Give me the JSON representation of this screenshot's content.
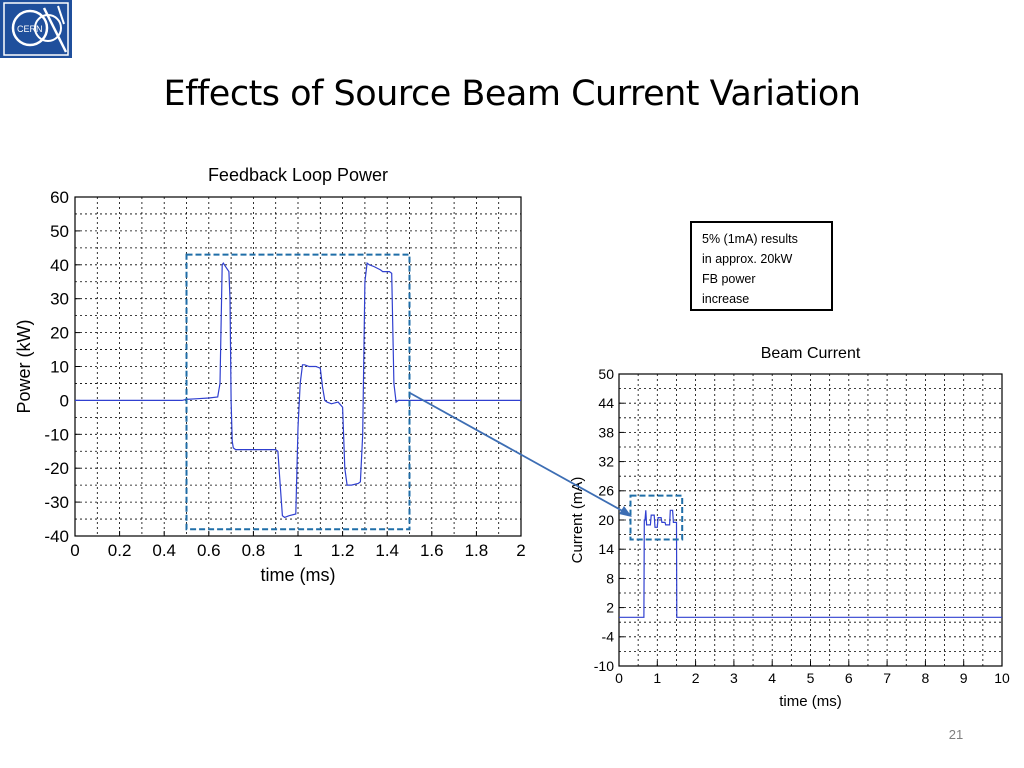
{
  "slide": {
    "title": "Effects of Source Beam Current Variation",
    "page_number": "21",
    "logo_text": "CERN"
  },
  "annotation": {
    "lines": [
      "5% (1mA) results",
      "in  approx. 20kW",
      "FB power",
      "increase"
    ]
  },
  "colors": {
    "trace": "#3040d0",
    "highlight_box": "#1f6ea8",
    "arrow": "#3d6eb4",
    "grid": "#000000",
    "logo_bg": "#1f4f9c"
  },
  "chart_data": [
    {
      "type": "line",
      "title": "Feedback Loop Power",
      "xlabel": "time (ms)",
      "ylabel": "Power (kW)",
      "xlim": [
        0,
        2
      ],
      "ylim": [
        -40,
        60
      ],
      "xticks": [
        0,
        0.2,
        0.4,
        0.6,
        0.8,
        1,
        1.2,
        1.4,
        1.6,
        1.8,
        2
      ],
      "xtick_labels": [
        "0",
        "0.2",
        "0.4",
        "0.6",
        "0.8",
        "1",
        "1.2",
        "1.4",
        "1.6",
        "1.8",
        "2"
      ],
      "yticks": [
        60,
        50,
        40,
        30,
        20,
        10,
        0,
        -10,
        -20,
        -30,
        -40
      ],
      "ytick_labels": [
        "60",
        "50",
        "40",
        "30",
        "20",
        "10",
        "0",
        "-10",
        "-20",
        "-30",
        "-40"
      ],
      "grid": true,
      "highlight_region": {
        "x": [
          0.5,
          1.5
        ],
        "y": [
          -38,
          43
        ]
      },
      "series": [
        {
          "x": [
            0,
            0.48,
            0.5,
            0.55,
            0.6,
            0.64,
            0.65,
            0.66,
            0.665,
            0.67,
            0.68,
            0.69,
            0.695,
            0.7,
            0.705,
            0.71,
            0.72,
            0.75,
            0.8,
            0.9,
            0.91,
            0.92,
            0.93,
            0.94,
            0.96,
            0.99,
            1.0,
            1.01,
            1.02,
            1.03,
            1.05,
            1.08,
            1.1,
            1.11,
            1.12,
            1.13,
            1.15,
            1.18,
            1.2,
            1.21,
            1.22,
            1.24,
            1.27,
            1.28,
            1.29,
            1.3,
            1.31,
            1.32,
            1.34,
            1.37,
            1.38,
            1.41,
            1.42,
            1.43,
            1.44,
            1.45,
            1.46,
            1.5,
            2
          ],
          "y": [
            0,
            0,
            0.3,
            0.5,
            0.7,
            1,
            5,
            40,
            40.5,
            40,
            39,
            38,
            30,
            0,
            -12,
            -14,
            -14.5,
            -14.5,
            -14.5,
            -14.5,
            -15,
            -25,
            -34,
            -34.5,
            -34,
            -33.5,
            -8,
            5,
            10.5,
            10.5,
            10,
            10,
            9.5,
            4,
            0,
            -0.5,
            -1,
            -0.5,
            -2,
            -20,
            -25,
            -25,
            -24.5,
            -24,
            -10,
            35,
            40.5,
            40,
            39.5,
            38.5,
            38,
            38,
            37.5,
            5,
            -0.5,
            0,
            0,
            0,
            0
          ]
        }
      ]
    },
    {
      "type": "line",
      "title": "Beam Current",
      "xlabel": "time (ms)",
      "ylabel": "Current (mA)",
      "xlim": [
        0,
        10
      ],
      "ylim": [
        -10,
        50
      ],
      "xticks": [
        0,
        1,
        2,
        3,
        4,
        5,
        6,
        7,
        8,
        9,
        10
      ],
      "xtick_labels": [
        "0",
        "1",
        "2",
        "3",
        "4",
        "5",
        "6",
        "7",
        "8",
        "9",
        "10"
      ],
      "yticks": [
        50,
        44,
        38,
        32,
        26,
        20,
        14,
        8,
        2,
        -4,
        -10
      ],
      "ytick_labels": [
        "50",
        "44",
        "38",
        "32",
        "26",
        "20",
        "14",
        "8",
        "2",
        "-4",
        "-10"
      ],
      "grid": true,
      "highlight_region": {
        "x": [
          0.3,
          1.65
        ],
        "y": [
          16,
          25
        ]
      },
      "series": [
        {
          "x": [
            0,
            0.65,
            0.66,
            0.68,
            0.7,
            0.72,
            0.82,
            0.84,
            0.92,
            0.94,
            1.0,
            1.02,
            1.1,
            1.12,
            1.2,
            1.22,
            1.32,
            1.34,
            1.4,
            1.42,
            1.5,
            1.51,
            10
          ],
          "y": [
            0,
            0,
            20,
            20,
            22,
            19,
            19,
            21,
            21,
            18.5,
            18.5,
            20.5,
            20.5,
            19.5,
            19.5,
            19,
            19,
            22,
            22,
            19.5,
            19.5,
            0,
            0
          ]
        }
      ]
    }
  ]
}
